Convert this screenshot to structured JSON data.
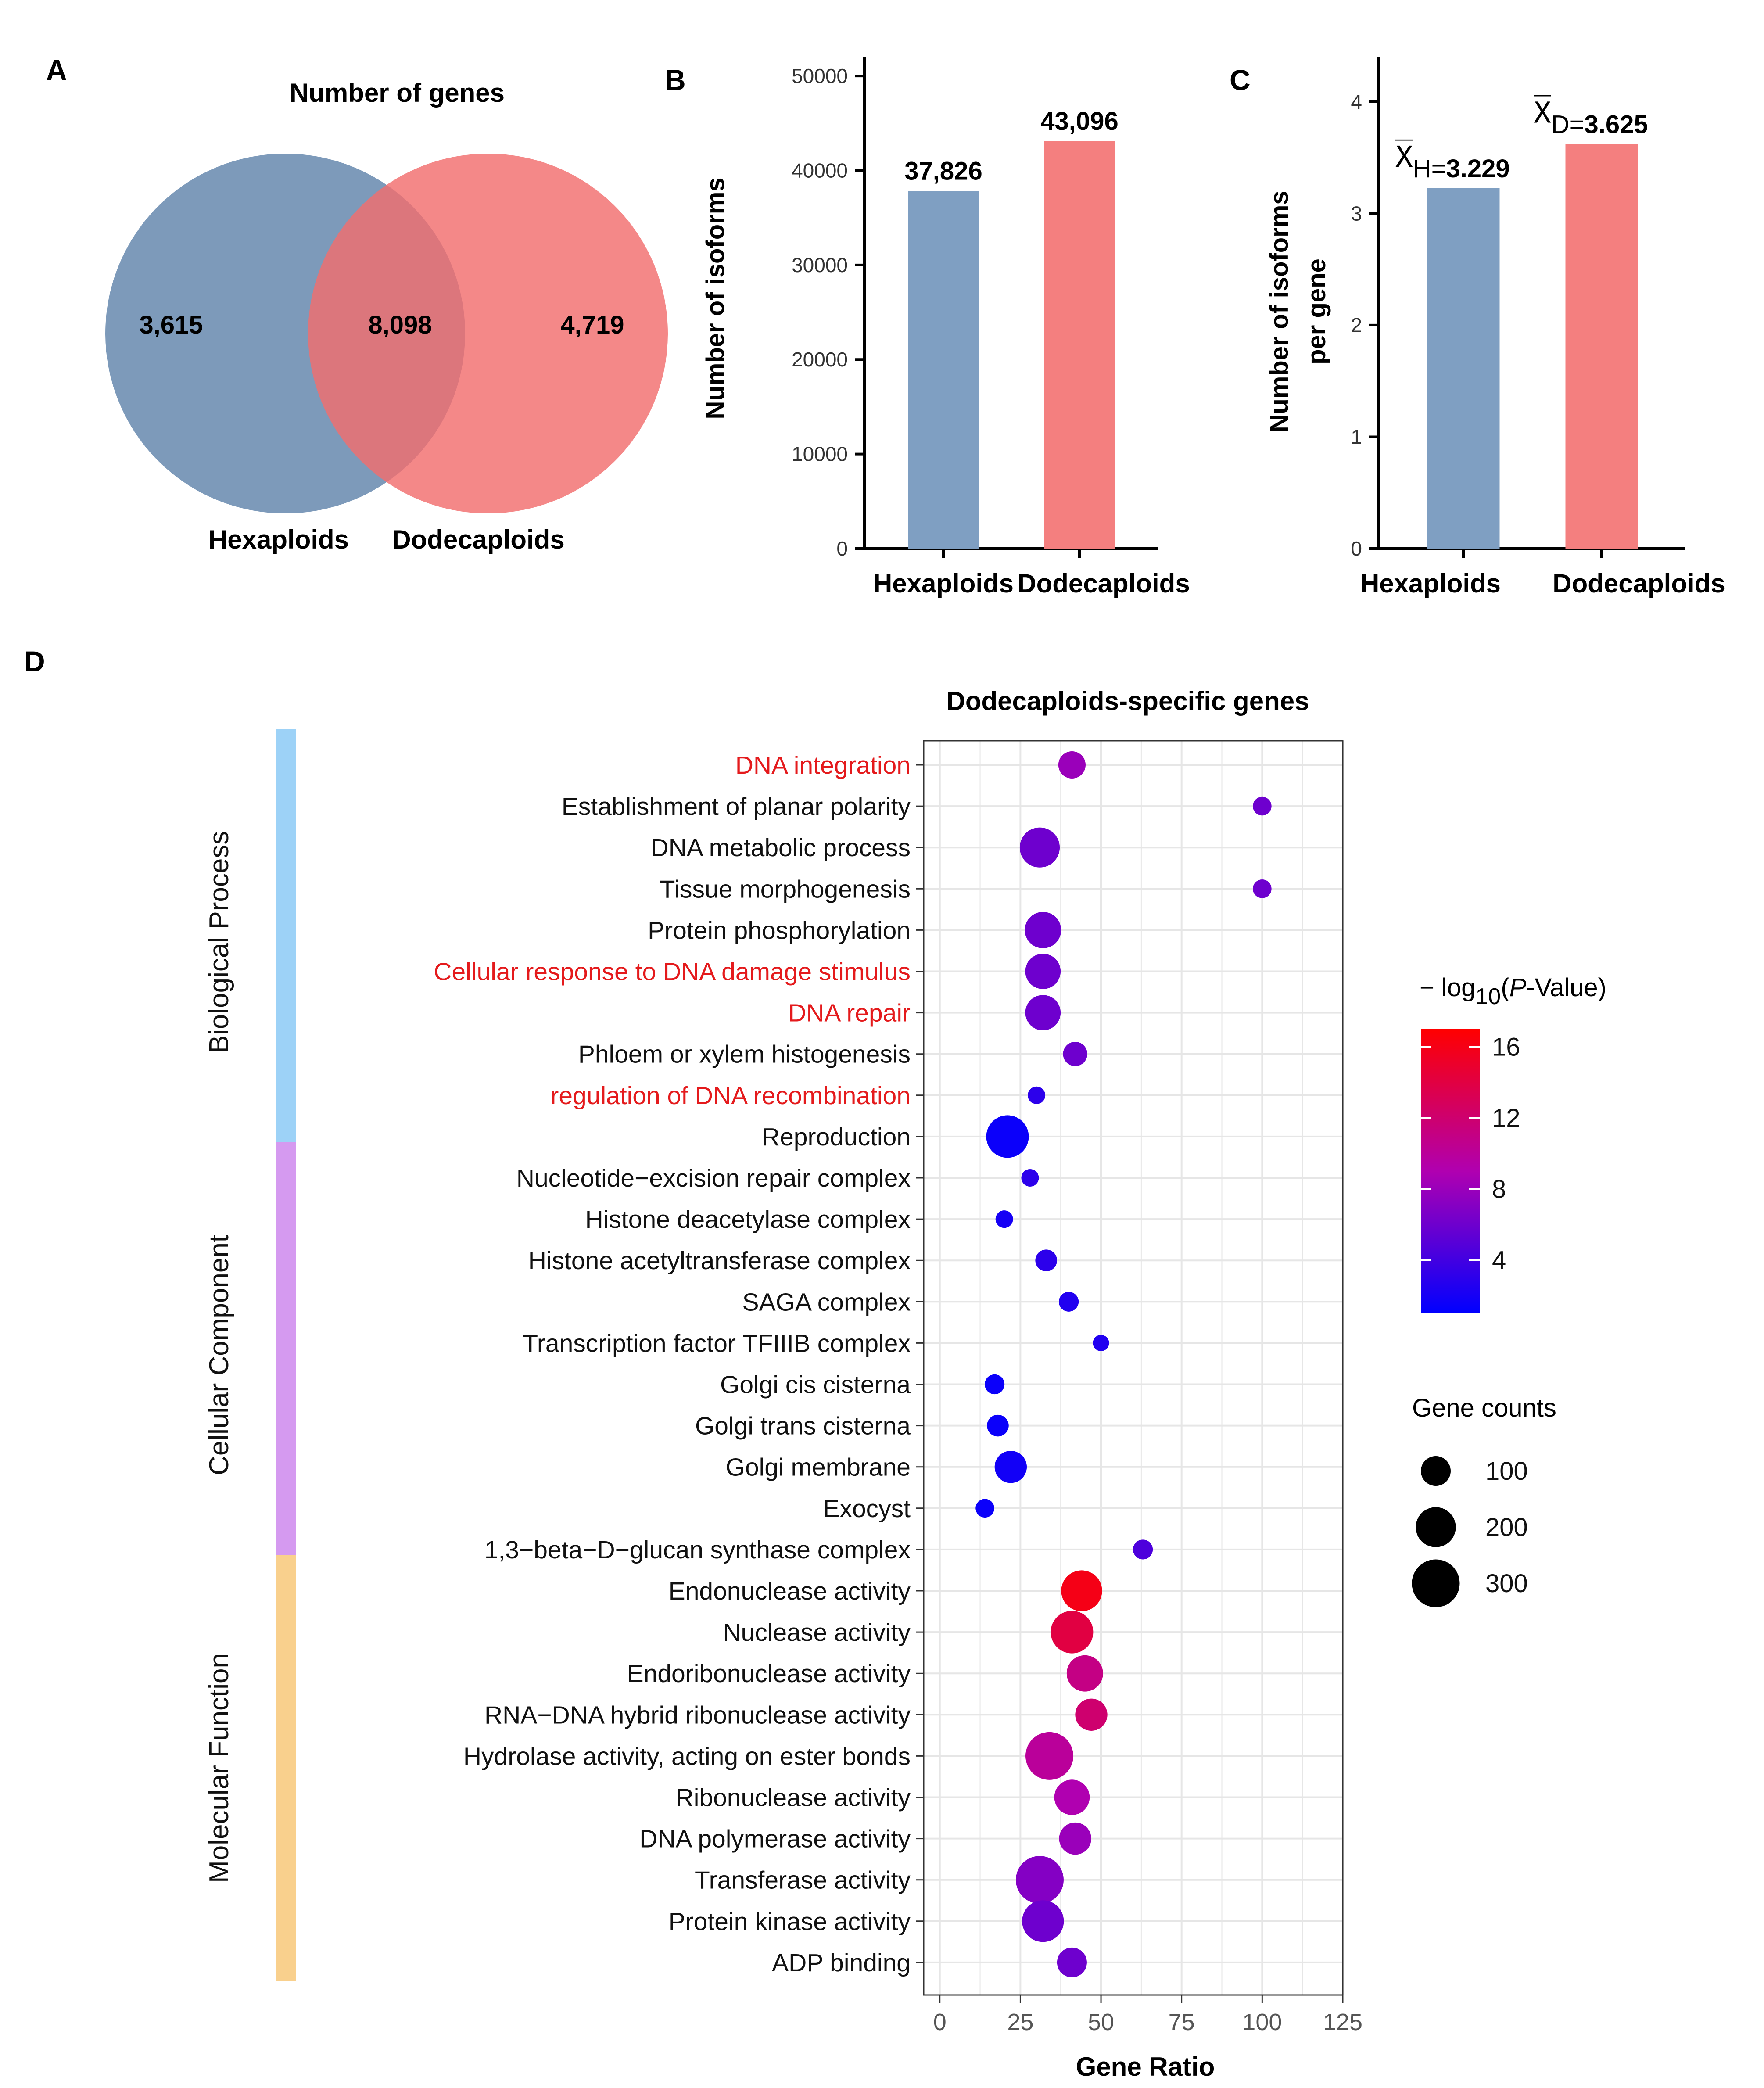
{
  "colors": {
    "hexaploids": "#7f9fc2",
    "dodecaploids": "#f47f7f",
    "venn_hex": "#6f8fb3",
    "venn_dod": "#f26e6e",
    "red_label": "#e41a1c",
    "bp_bar": "#9dd2f7",
    "cc_bar": "#d59af0",
    "mf_bar": "#f9d08d",
    "grad_high": "#ff0000",
    "grad_mid": "#b000b0",
    "grad_low": "#0000ff"
  },
  "panel_letters": {
    "a": "A",
    "b": "B",
    "c": "C",
    "d": "D"
  },
  "chart_data": [
    {
      "type": "venn",
      "panel": "A",
      "title": "Number of genes",
      "sets": [
        "Hexaploids",
        "Dodecaploids"
      ],
      "values": {
        "hexaploids_only": "3,615",
        "overlap": "8,098",
        "dodecaploids_only": "4,719"
      }
    },
    {
      "type": "bar",
      "panel": "B",
      "categories": [
        "Hexaploids",
        "Dodecaploids"
      ],
      "values": [
        37826,
        43096
      ],
      "data_labels": [
        "37,826",
        "43,096"
      ],
      "ylabel": "Number of isoforms",
      "ylim": [
        0,
        52000
      ],
      "yticks": [
        0,
        10000,
        20000,
        30000,
        40000,
        50000
      ]
    },
    {
      "type": "bar",
      "panel": "C",
      "categories": [
        "Hexaploids",
        "Dodecaploids"
      ],
      "values": [
        3.229,
        3.625
      ],
      "data_labels": [
        {
          "symbol": "X̅",
          "sub": "H=",
          "value": "3.229"
        },
        {
          "symbol": "X̅",
          "sub": "D=",
          "value": "3.625"
        }
      ],
      "ylabel_lines": [
        "Number of isoforms",
        "per gene"
      ],
      "ylim": [
        0,
        4.4
      ],
      "yticks": [
        0,
        1,
        2,
        3,
        4
      ]
    },
    {
      "type": "scatter",
      "panel": "D",
      "title": "Dodecaploids-specific genes",
      "xlabel": "Gene Ratio",
      "xlim": [
        -5,
        125
      ],
      "xticks": [
        0,
        25,
        50,
        75,
        100,
        125
      ],
      "groups": [
        {
          "name": "Biological Process",
          "start": 0,
          "end": 9
        },
        {
          "name": "Cellular Component",
          "start": 10,
          "end": 19
        },
        {
          "name": "Molecular Function",
          "start": 20,
          "end": 29
        }
      ],
      "terms": [
        {
          "label": "DNA integration",
          "x": 41,
          "count": 80,
          "p": 8,
          "highlight": true
        },
        {
          "label": "Establishment of planar polarity",
          "x": 100,
          "count": 30,
          "p": 6,
          "highlight": false
        },
        {
          "label": "DNA metabolic process",
          "x": 31,
          "count": 200,
          "p": 6,
          "highlight": false
        },
        {
          "label": "Tissue morphogenesis",
          "x": 100,
          "count": 30,
          "p": 6,
          "highlight": false
        },
        {
          "label": "Protein phosphorylation",
          "x": 32,
          "count": 160,
          "p": 6,
          "highlight": false
        },
        {
          "label": "Cellular response to DNA damage stimulus",
          "x": 32,
          "count": 150,
          "p": 6,
          "highlight": true
        },
        {
          "label": "DNA repair",
          "x": 32,
          "count": 150,
          "p": 6,
          "highlight": true
        },
        {
          "label": "Phloem or xylem histogenesis",
          "x": 42,
          "count": 60,
          "p": 6,
          "highlight": false
        },
        {
          "label": "regulation of DNA recombination",
          "x": 30,
          "count": 25,
          "p": 3,
          "highlight": true
        },
        {
          "label": "Reproduction",
          "x": 21,
          "count": 230,
          "p": 1.5,
          "highlight": false
        },
        {
          "label": "Nucleotide−excision repair complex",
          "x": 28,
          "count": 25,
          "p": 3,
          "highlight": false
        },
        {
          "label": "Histone deacetylase complex",
          "x": 20,
          "count": 25,
          "p": 2,
          "highlight": false
        },
        {
          "label": "Histone acetyltransferase complex",
          "x": 33,
          "count": 45,
          "p": 3,
          "highlight": false
        },
        {
          "label": "SAGA complex",
          "x": 40,
          "count": 35,
          "p": 2.5,
          "highlight": false
        },
        {
          "label": "Transcription factor TFIIIB complex",
          "x": 50,
          "count": 20,
          "p": 2.5,
          "highlight": false
        },
        {
          "label": "Golgi cis cisterna",
          "x": 17,
          "count": 35,
          "p": 1.5,
          "highlight": false
        },
        {
          "label": "Golgi trans cisterna",
          "x": 18,
          "count": 45,
          "p": 1.5,
          "highlight": false
        },
        {
          "label": "Golgi membrane",
          "x": 22,
          "count": 120,
          "p": 1.8,
          "highlight": false
        },
        {
          "label": "Exocyst",
          "x": 14,
          "count": 30,
          "p": 1.5,
          "highlight": false
        },
        {
          "label": "1,3−beta−D−glucan synthase complex",
          "x": 63,
          "count": 35,
          "p": 4.5,
          "highlight": false
        },
        {
          "label": "Endonuclease activity",
          "x": 44,
          "count": 210,
          "p": 16,
          "highlight": false
        },
        {
          "label": "Nuclease activity",
          "x": 41,
          "count": 230,
          "p": 14,
          "highlight": false
        },
        {
          "label": "Endoribonuclease activity",
          "x": 45,
          "count": 160,
          "p": 11,
          "highlight": false
        },
        {
          "label": "RNA−DNA hybrid ribonuclease activity",
          "x": 47,
          "count": 120,
          "p": 12,
          "highlight": false
        },
        {
          "label": "Hydrolase activity, acting on ester bonds",
          "x": 34,
          "count": 300,
          "p": 10,
          "highlight": false
        },
        {
          "label": "Ribonuclease activity",
          "x": 41,
          "count": 150,
          "p": 9,
          "highlight": false
        },
        {
          "label": "DNA polymerase activity",
          "x": 42,
          "count": 120,
          "p": 8,
          "highlight": false
        },
        {
          "label": "Transferase activity",
          "x": 31,
          "count": 300,
          "p": 7,
          "highlight": false
        },
        {
          "label": "Protein kinase activity",
          "x": 32,
          "count": 220,
          "p": 6,
          "highlight": false
        },
        {
          "label": "ADP binding",
          "x": 41,
          "count": 100,
          "p": 6,
          "highlight": false
        }
      ],
      "color_legend": {
        "title_parts": [
          "− log",
          "10",
          "(",
          "P",
          "-Value)"
        ],
        "ticks": [
          4,
          8,
          12,
          16
        ],
        "range": [
          1,
          17
        ]
      },
      "size_legend": {
        "title": "Gene counts",
        "values": [
          100,
          200,
          300
        ]
      }
    }
  ]
}
